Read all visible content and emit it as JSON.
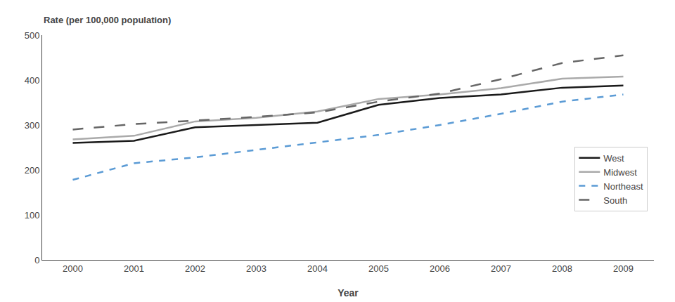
{
  "chart_data": {
    "type": "line",
    "ylabel": "Rate (per 100,000 population)",
    "xlabel": "Year",
    "x": [
      2000,
      2001,
      2002,
      2003,
      2004,
      2005,
      2006,
      2007,
      2008,
      2009
    ],
    "series": [
      {
        "name": "West",
        "color": "#1a1a1a",
        "line_style": "solid",
        "values": [
          260,
          265,
          295,
          300,
          305,
          345,
          360,
          368,
          383,
          388
        ]
      },
      {
        "name": "Midwest",
        "color": "#aaaaaa",
        "line_style": "solid",
        "values": [
          268,
          276,
          308,
          316,
          330,
          358,
          368,
          382,
          403,
          408
        ]
      },
      {
        "name": "Northeast",
        "color": "#5b9bd5",
        "line_style": "dashed",
        "values": [
          178,
          215,
          228,
          245,
          262,
          278,
          300,
          325,
          352,
          368
        ]
      },
      {
        "name": "South",
        "color": "#666666",
        "line_style": "long_dashed",
        "values": [
          290,
          302,
          310,
          318,
          328,
          352,
          370,
          402,
          438,
          455
        ]
      }
    ],
    "xlim": [
      1999.5,
      2009.5
    ],
    "xticks": [
      2000,
      2001,
      2002,
      2003,
      2004,
      2005,
      2006,
      2007,
      2008,
      2009
    ],
    "ylim": [
      0,
      500
    ],
    "yticks": [
      0,
      100,
      200,
      300,
      400,
      500
    ],
    "grid": false,
    "legend": "right"
  }
}
